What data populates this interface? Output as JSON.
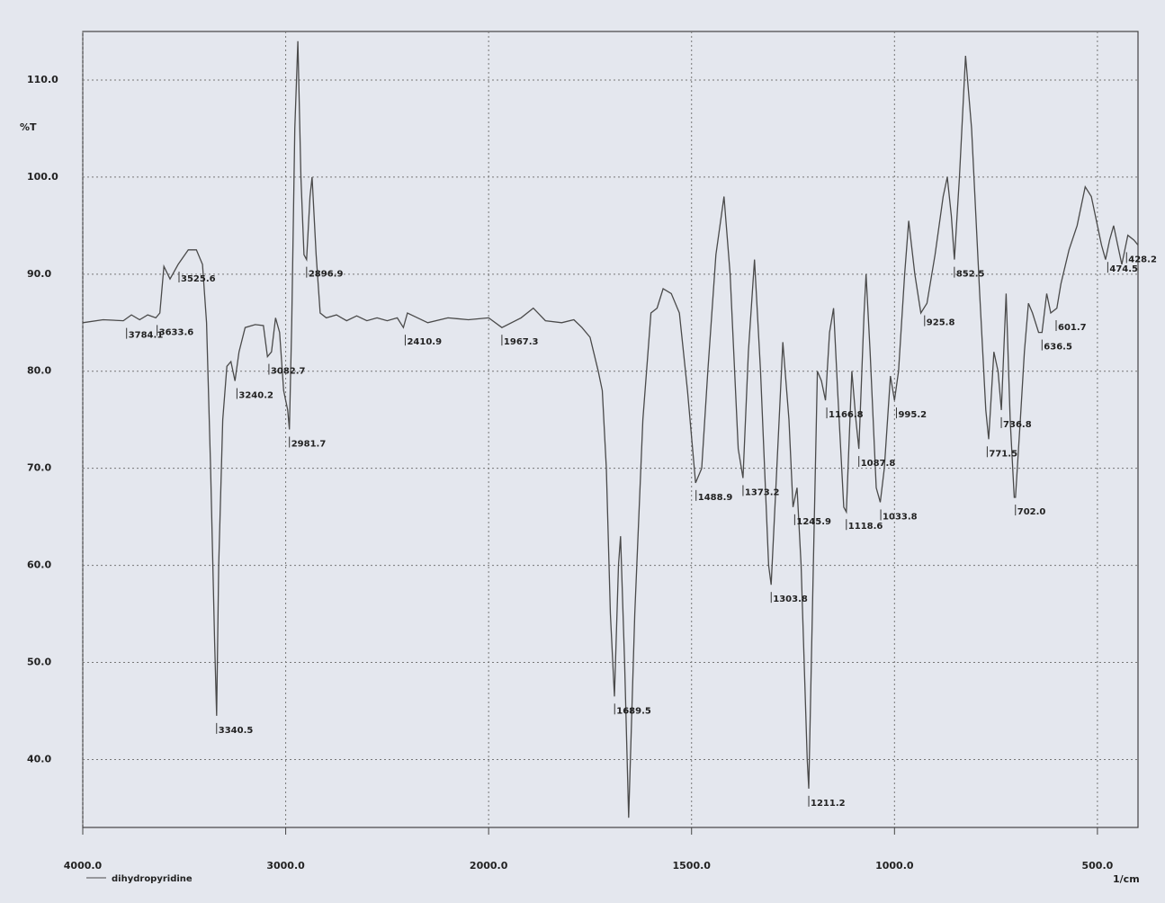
{
  "chart_data": {
    "type": "line",
    "y_label": "%T",
    "x_unit": "1/cm",
    "grid": true,
    "x": [
      4000,
      3900,
      3800,
      3760,
      3720,
      3680,
      3640,
      3620,
      3600,
      3570,
      3530,
      3480,
      3440,
      3410,
      3390,
      3370,
      3350,
      3340.5,
      3330,
      3310,
      3290,
      3270,
      3250,
      3230,
      3200,
      3150,
      3110,
      3090,
      3070,
      3050,
      3030,
      3010,
      2990,
      2981.7,
      2970,
      2955,
      2940,
      2925,
      2910,
      2896.9,
      2880,
      2870,
      2850,
      2830,
      2800,
      2750,
      2700,
      2650,
      2600,
      2550,
      2500,
      2450,
      2420,
      2400,
      2350,
      2300,
      2200,
      2100,
      2000,
      1967.3,
      1920,
      1890,
      1860,
      1820,
      1790,
      1770,
      1750,
      1730,
      1720,
      1710,
      1700,
      1690,
      1680,
      1675,
      1665,
      1655,
      1640,
      1620,
      1600,
      1585,
      1570,
      1550,
      1530,
      1510,
      1490,
      1475,
      1460,
      1440,
      1420,
      1405,
      1385,
      1373.2,
      1360,
      1345,
      1330,
      1310,
      1303.8,
      1290,
      1275,
      1260,
      1250,
      1240,
      1230,
      1215,
      1211.2,
      1200,
      1190,
      1180,
      1170,
      1160,
      1150,
      1140,
      1125,
      1118.6,
      1105,
      1095,
      1087.8,
      1075,
      1070,
      1060,
      1045,
      1035,
      1025,
      1010,
      1000,
      990,
      975,
      965,
      950,
      935,
      920,
      900,
      880,
      870,
      860,
      852.5,
      840,
      825,
      810,
      790,
      775,
      768,
      755,
      745,
      736.8,
      725,
      715,
      705,
      702,
      690,
      680,
      670,
      660,
      645,
      636.5,
      625,
      615,
      600,
      590,
      570,
      550,
      530,
      515,
      500,
      490,
      480,
      470,
      460,
      450,
      440,
      425,
      410,
      400
    ],
    "series": [
      {
        "name": "dihydropyridine",
        "color": "#4a4a4a",
        "values": [
          85,
          85.3,
          85.2,
          85.8,
          85.3,
          85.8,
          85.5,
          86,
          90.8,
          89.5,
          91,
          92.5,
          92.5,
          91,
          85,
          70,
          52,
          44.5,
          60,
          75,
          80.5,
          81,
          79,
          82,
          84.5,
          84.8,
          84.7,
          81.5,
          82,
          85.5,
          84,
          78,
          76,
          74,
          85,
          105,
          114,
          100,
          92,
          91.5,
          98,
          100,
          92,
          86,
          85.5,
          85.8,
          85.2,
          85.7,
          85.2,
          85.5,
          85.2,
          85.5,
          84.5,
          86,
          85.5,
          85,
          85.5,
          85.3,
          85.5,
          84.5,
          85.5,
          86.5,
          85.2,
          85,
          85.3,
          84.5,
          83.5,
          80,
          78,
          70,
          55,
          46.5,
          60,
          63,
          50,
          34,
          55,
          75,
          86,
          86.5,
          88.5,
          88,
          86,
          78,
          68.5,
          70,
          80,
          92,
          98,
          90,
          72,
          69,
          82,
          91.5,
          80,
          60,
          58,
          70,
          83,
          75,
          66,
          68,
          60,
          40,
          37,
          60,
          80,
          79,
          77,
          84,
          86.5,
          78,
          66,
          65.5,
          80,
          75,
          72,
          86,
          90,
          82,
          68,
          66.5,
          70,
          79.5,
          77,
          80,
          90,
          95.5,
          90,
          86,
          87,
          92,
          98,
          100,
          96,
          91.5,
          100,
          112.5,
          105,
          88,
          76,
          73,
          82,
          80,
          76,
          88,
          75,
          67,
          67,
          75,
          82,
          87,
          86,
          84,
          84,
          88,
          86,
          86.5,
          89,
          92.5,
          95,
          99,
          98,
          95,
          93,
          91.5,
          93.5,
          95,
          93,
          91,
          94,
          93.5,
          93
        ]
      }
    ],
    "peaks": [
      {
        "x": 3784.1,
        "y": 85.2,
        "label": "3784.1"
      },
      {
        "x": 3633.6,
        "y": 85.5,
        "label": "3633.6"
      },
      {
        "x": 3525.6,
        "y": 91,
        "label": "3525.6"
      },
      {
        "x": 3340.5,
        "y": 44.5,
        "label": "3340.5"
      },
      {
        "x": 3240.2,
        "y": 79,
        "label": "3240.2"
      },
      {
        "x": 3082.7,
        "y": 81.5,
        "label": "3082.7"
      },
      {
        "x": 2981.7,
        "y": 74,
        "label": "2981.7"
      },
      {
        "x": 2896.9,
        "y": 91.5,
        "label": "2896.9"
      },
      {
        "x": 2410.9,
        "y": 84.5,
        "label": "2410.9"
      },
      {
        "x": 1967.3,
        "y": 84.5,
        "label": "1967.3"
      },
      {
        "x": 1689.5,
        "y": 46.5,
        "label": "1689.5"
      },
      {
        "x": 1488.9,
        "y": 68.5,
        "label": "1488.9"
      },
      {
        "x": 1373.2,
        "y": 69,
        "label": "1373.2"
      },
      {
        "x": 1303.8,
        "y": 58,
        "label": "1303.8"
      },
      {
        "x": 1245.9,
        "y": 66,
        "label": "1245.9"
      },
      {
        "x": 1211.2,
        "y": 37,
        "label": "1211.2"
      },
      {
        "x": 1166.8,
        "y": 77,
        "label": "1166.8"
      },
      {
        "x": 1118.6,
        "y": 65.5,
        "label": "1118.6"
      },
      {
        "x": 1087.8,
        "y": 72,
        "label": "1087.8"
      },
      {
        "x": 1033.8,
        "y": 66.5,
        "label": "1033.8"
      },
      {
        "x": 995.2,
        "y": 77,
        "label": "995.2"
      },
      {
        "x": 925.8,
        "y": 86.5,
        "label": "925.8"
      },
      {
        "x": 852.5,
        "y": 91.5,
        "label": "852.5"
      },
      {
        "x": 771.5,
        "y": 73,
        "label": "771.5"
      },
      {
        "x": 736.8,
        "y": 76,
        "label": "736.8"
      },
      {
        "x": 702,
        "y": 67,
        "label": "702.0"
      },
      {
        "x": 636.5,
        "y": 84,
        "label": "636.5"
      },
      {
        "x": 601.7,
        "y": 86,
        "label": "601.7"
      },
      {
        "x": 474.5,
        "y": 92,
        "label": "474.5"
      },
      {
        "x": 428.2,
        "y": 93,
        "label": "428.2"
      }
    ],
    "xlim": [
      4000,
      400
    ],
    "xticks": [
      {
        "value": 4000,
        "label": "4000.0"
      },
      {
        "value": 3000,
        "label": "3000.0"
      },
      {
        "value": 2000,
        "label": "2000.0"
      },
      {
        "value": 1500,
        "label": "1500.0"
      },
      {
        "value": 1000,
        "label": "1000.0"
      },
      {
        "value": 500,
        "label": "500.0"
      }
    ],
    "ylim": [
      33,
      115
    ],
    "yticks": [
      {
        "value": 40,
        "label": "40.0"
      },
      {
        "value": 50,
        "label": "50.0"
      },
      {
        "value": 60,
        "label": "60.0"
      },
      {
        "value": 70,
        "label": "70.0"
      },
      {
        "value": 80,
        "label": "80.0"
      },
      {
        "value": 90,
        "label": "90.0"
      },
      {
        "value": 100,
        "label": "100.0"
      },
      {
        "value": 110,
        "label": "110.0"
      }
    ]
  }
}
